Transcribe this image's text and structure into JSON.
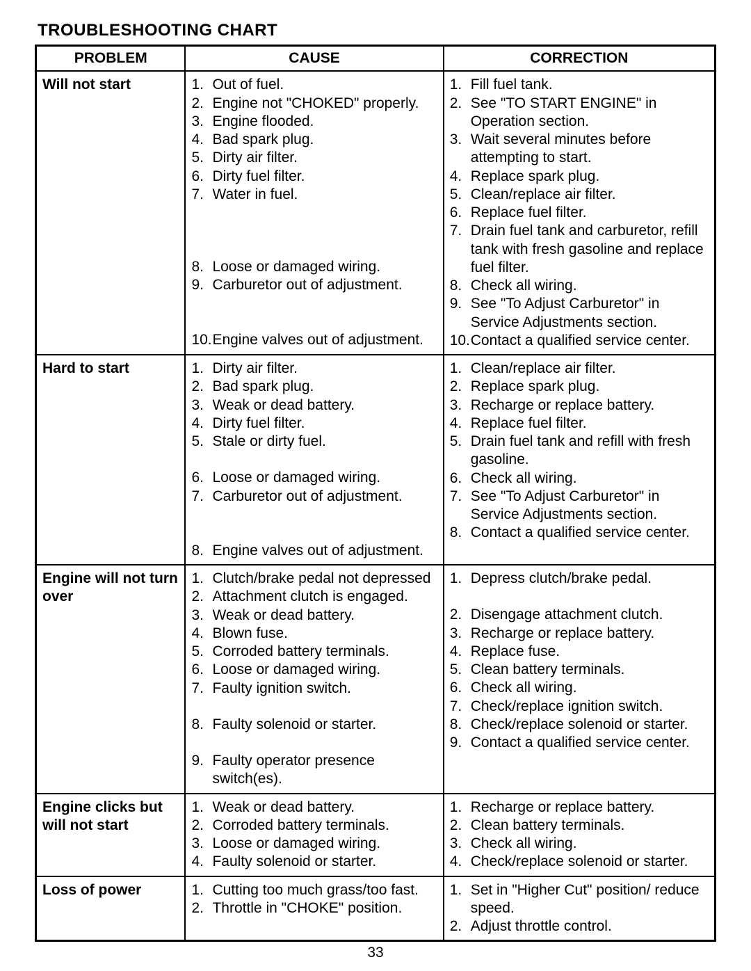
{
  "title": "TROUBLESHOOTING CHART",
  "page_number": "33",
  "headers": {
    "problem": "PROBLEM",
    "cause": "CAUSE",
    "correction": "CORRECTION"
  },
  "rows": [
    {
      "problem": "Will not start",
      "causes": [
        {
          "n": "1.",
          "t": "Out of fuel."
        },
        {
          "n": "2.",
          "t": "Engine not \"CHOKED\" properly."
        },
        {
          "n": "3.",
          "t": "Engine flooded."
        },
        {
          "n": "4.",
          "t": "Bad spark plug."
        },
        {
          "n": "5.",
          "t": "Dirty air filter."
        },
        {
          "n": "6.",
          "t": "Dirty fuel filter."
        },
        {
          "n": "7.",
          "t": "Water in fuel."
        },
        {
          "n": "8.",
          "t": "Loose or damaged wiring."
        },
        {
          "n": "9.",
          "t": "Carburetor out of adjustment."
        },
        {
          "n": "10.",
          "t": "Engine valves out of adjustment."
        }
      ],
      "corrections": [
        {
          "n": "1.",
          "t": "Fill fuel tank."
        },
        {
          "n": "2.",
          "t": "See \"TO START ENGINE\" in Operation section."
        },
        {
          "n": "3.",
          "t": "Wait several minutes before attempting to start."
        },
        {
          "n": "4.",
          "t": "Replace spark plug."
        },
        {
          "n": "5.",
          "t": "Clean/replace air filter."
        },
        {
          "n": "6.",
          "t": "Replace fuel filter."
        },
        {
          "n": "7.",
          "t": "Drain fuel tank and carburetor, refill tank with fresh gasoline and replace fuel filter."
        },
        {
          "n": "8.",
          "t": "Check all wiring."
        },
        {
          "n": "9.",
          "t": "See \"To Adjust Carburetor\" in Service Adjustments section."
        },
        {
          "n": "10.",
          "t": "Contact a qualified service center."
        }
      ],
      "cause_spacers": {
        "7": 3,
        "9": 2
      },
      "corr_spacers": {}
    },
    {
      "problem": "Hard to start",
      "causes": [
        {
          "n": "1.",
          "t": "Dirty air filter."
        },
        {
          "n": "2.",
          "t": "Bad spark plug."
        },
        {
          "n": "3.",
          "t": "Weak or dead battery."
        },
        {
          "n": "4.",
          "t": "Dirty fuel filter."
        },
        {
          "n": "5.",
          "t": "Stale or dirty fuel."
        },
        {
          "n": "6.",
          "t": "Loose or damaged wiring."
        },
        {
          "n": "7.",
          "t": "Carburetor out of adjustment."
        },
        {
          "n": "8.",
          "t": "Engine valves out of adjustment."
        }
      ],
      "corrections": [
        {
          "n": "1.",
          "t": "Clean/replace air filter."
        },
        {
          "n": "2.",
          "t": "Replace spark plug."
        },
        {
          "n": "3.",
          "t": "Recharge or replace battery."
        },
        {
          "n": "4.",
          "t": "Replace fuel filter."
        },
        {
          "n": "5.",
          "t": "Drain fuel tank and refill with fresh gasoline."
        },
        {
          "n": "6.",
          "t": "Check all wiring."
        },
        {
          "n": "7.",
          "t": "See \"To Adjust Carburetor\" in Service Adjustments section."
        },
        {
          "n": "8.",
          "t": "Contact a qualified service center."
        }
      ],
      "cause_spacers": {
        "5": 1,
        "7": 2
      },
      "corr_spacers": {}
    },
    {
      "problem": "Engine will not turn over",
      "causes": [
        {
          "n": "1.",
          "t": "Clutch/brake pedal not depressed"
        },
        {
          "n": "2.",
          "t": "Attachment clutch is engaged."
        },
        {
          "n": "3.",
          "t": "Weak or dead battery."
        },
        {
          "n": "4.",
          "t": "Blown fuse."
        },
        {
          "n": "5.",
          "t": "Corroded battery terminals."
        },
        {
          "n": "6.",
          "t": "Loose or damaged wiring."
        },
        {
          "n": "7.",
          "t": "Faulty ignition switch."
        },
        {
          "n": "8.",
          "t": "Faulty solenoid or starter."
        },
        {
          "n": "9.",
          "t": "Faulty operator presence switch(es)."
        }
      ],
      "corrections": [
        {
          "n": "1.",
          "t": "Depress clutch/brake pedal."
        },
        {
          "n": "2.",
          "t": "Disengage attachment clutch."
        },
        {
          "n": "3.",
          "t": "Recharge or replace battery."
        },
        {
          "n": "4.",
          "t": "Replace fuse."
        },
        {
          "n": "5.",
          "t": "Clean battery terminals."
        },
        {
          "n": "6.",
          "t": "Check all wiring."
        },
        {
          "n": "7.",
          "t": "Check/replace ignition switch."
        },
        {
          "n": "8.",
          "t": "Check/replace solenoid or starter."
        },
        {
          "n": "9.",
          "t": "Contact a qualified service center."
        }
      ],
      "cause_spacers": {
        "7": 1,
        "8": 1
      },
      "corr_spacers": {
        "1": 1
      }
    },
    {
      "problem": "Engine clicks but will not start",
      "causes": [
        {
          "n": "1.",
          "t": "Weak or dead battery."
        },
        {
          "n": "2.",
          "t": "Corroded battery terminals."
        },
        {
          "n": "3.",
          "t": "Loose or damaged wiring."
        },
        {
          "n": "4.",
          "t": "Faulty solenoid or starter."
        }
      ],
      "corrections": [
        {
          "n": "1.",
          "t": "Recharge or replace battery."
        },
        {
          "n": "2.",
          "t": "Clean battery terminals."
        },
        {
          "n": "3.",
          "t": "Check all wiring."
        },
        {
          "n": "4.",
          "t": "Check/replace solenoid or starter."
        }
      ],
      "cause_spacers": {},
      "corr_spacers": {}
    },
    {
      "problem": "Loss of power",
      "causes": [
        {
          "n": "1.",
          "t": "Cutting too much grass/too fast."
        },
        {
          "n": "2.",
          "t": "Throttle in \"CHOKE\" position."
        }
      ],
      "corrections": [
        {
          "n": "1.",
          "t": "Set in \"Higher Cut\" position/ reduce speed."
        },
        {
          "n": "2.",
          "t": "Adjust throttle control."
        }
      ],
      "cause_spacers": {},
      "corr_spacers": {}
    }
  ]
}
